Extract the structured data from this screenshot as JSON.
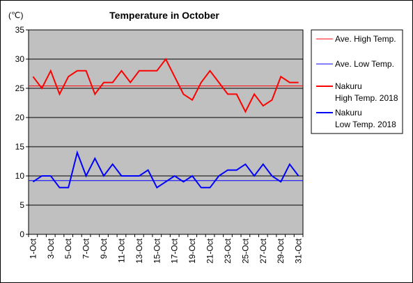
{
  "chart_data": {
    "type": "line",
    "title": "Temperature in October",
    "unit_label": "(℃)",
    "ylim": [
      0,
      35
    ],
    "yticks": [
      0,
      5,
      10,
      15,
      20,
      25,
      30,
      35
    ],
    "grid": true,
    "legend_position": "right",
    "x": [
      "1-Oct",
      "2-Oct",
      "3-Oct",
      "4-Oct",
      "5-Oct",
      "6-Oct",
      "7-Oct",
      "8-Oct",
      "9-Oct",
      "10-Oct",
      "11-Oct",
      "12-Oct",
      "13-Oct",
      "14-Oct",
      "15-Oct",
      "16-Oct",
      "17-Oct",
      "18-Oct",
      "19-Oct",
      "20-Oct",
      "21-Oct",
      "22-Oct",
      "23-Oct",
      "24-Oct",
      "25-Oct",
      "26-Oct",
      "27-Oct",
      "28-Oct",
      "29-Oct",
      "30-Oct",
      "31-Oct"
    ],
    "xtick_labels": [
      "1-Oct",
      "3-Oct",
      "5-Oct",
      "7-Oct",
      "9-Oct",
      "11-Oct",
      "13-Oct",
      "15-Oct",
      "17-Oct",
      "19-Oct",
      "21-Oct",
      "23-Oct",
      "25-Oct",
      "27-Oct",
      "29-Oct",
      "31-Oct"
    ],
    "series": [
      {
        "name": "Ave. High Temp.",
        "color": "#ff0000",
        "style": "thin",
        "values": [
          25.4,
          25.4,
          25.4,
          25.4,
          25.4,
          25.4,
          25.4,
          25.4,
          25.4,
          25.4,
          25.4,
          25.4,
          25.4,
          25.4,
          25.4,
          25.4,
          25.4,
          25.4,
          25.4,
          25.4,
          25.4,
          25.4,
          25.4,
          25.4,
          25.4,
          25.4,
          25.4,
          25.4,
          25.4,
          25.4,
          25.4
        ]
      },
      {
        "name": "Ave. Low Temp.",
        "color": "#0000ff",
        "style": "thin",
        "values": [
          9.2,
          9.2,
          9.2,
          9.2,
          9.2,
          9.2,
          9.2,
          9.2,
          9.2,
          9.2,
          9.2,
          9.2,
          9.2,
          9.2,
          9.2,
          9.2,
          9.2,
          9.2,
          9.2,
          9.2,
          9.2,
          9.2,
          9.2,
          9.2,
          9.2,
          9.2,
          9.2,
          9.2,
          9.2,
          9.2,
          9.2
        ]
      },
      {
        "name": "Nakuru High Temp. 2018",
        "legend_lines": [
          "Nakuru",
          "High Temp. 2018"
        ],
        "color": "#ff0000",
        "style": "thick",
        "values": [
          27,
          25,
          28,
          24,
          27,
          28,
          28,
          24,
          26,
          26,
          28,
          26,
          28,
          28,
          28,
          30,
          27,
          24,
          23,
          26,
          28,
          26,
          24,
          24,
          21,
          24,
          22,
          23,
          27,
          26,
          26
        ]
      },
      {
        "name": "Nakuru Low Temp. 2018",
        "legend_lines": [
          "Nakuru",
          "Low Temp. 2018"
        ],
        "color": "#0000ff",
        "style": "thick",
        "values": [
          9,
          10,
          10,
          8,
          8,
          14,
          10,
          13,
          10,
          12,
          10,
          10,
          10,
          11,
          8,
          9,
          10,
          9,
          10,
          8,
          8,
          10,
          11,
          11,
          12,
          10,
          12,
          10,
          9,
          12,
          10
        ]
      }
    ]
  },
  "colors": {
    "plot_background": "#c0c0c0",
    "gridline": "#000000"
  }
}
